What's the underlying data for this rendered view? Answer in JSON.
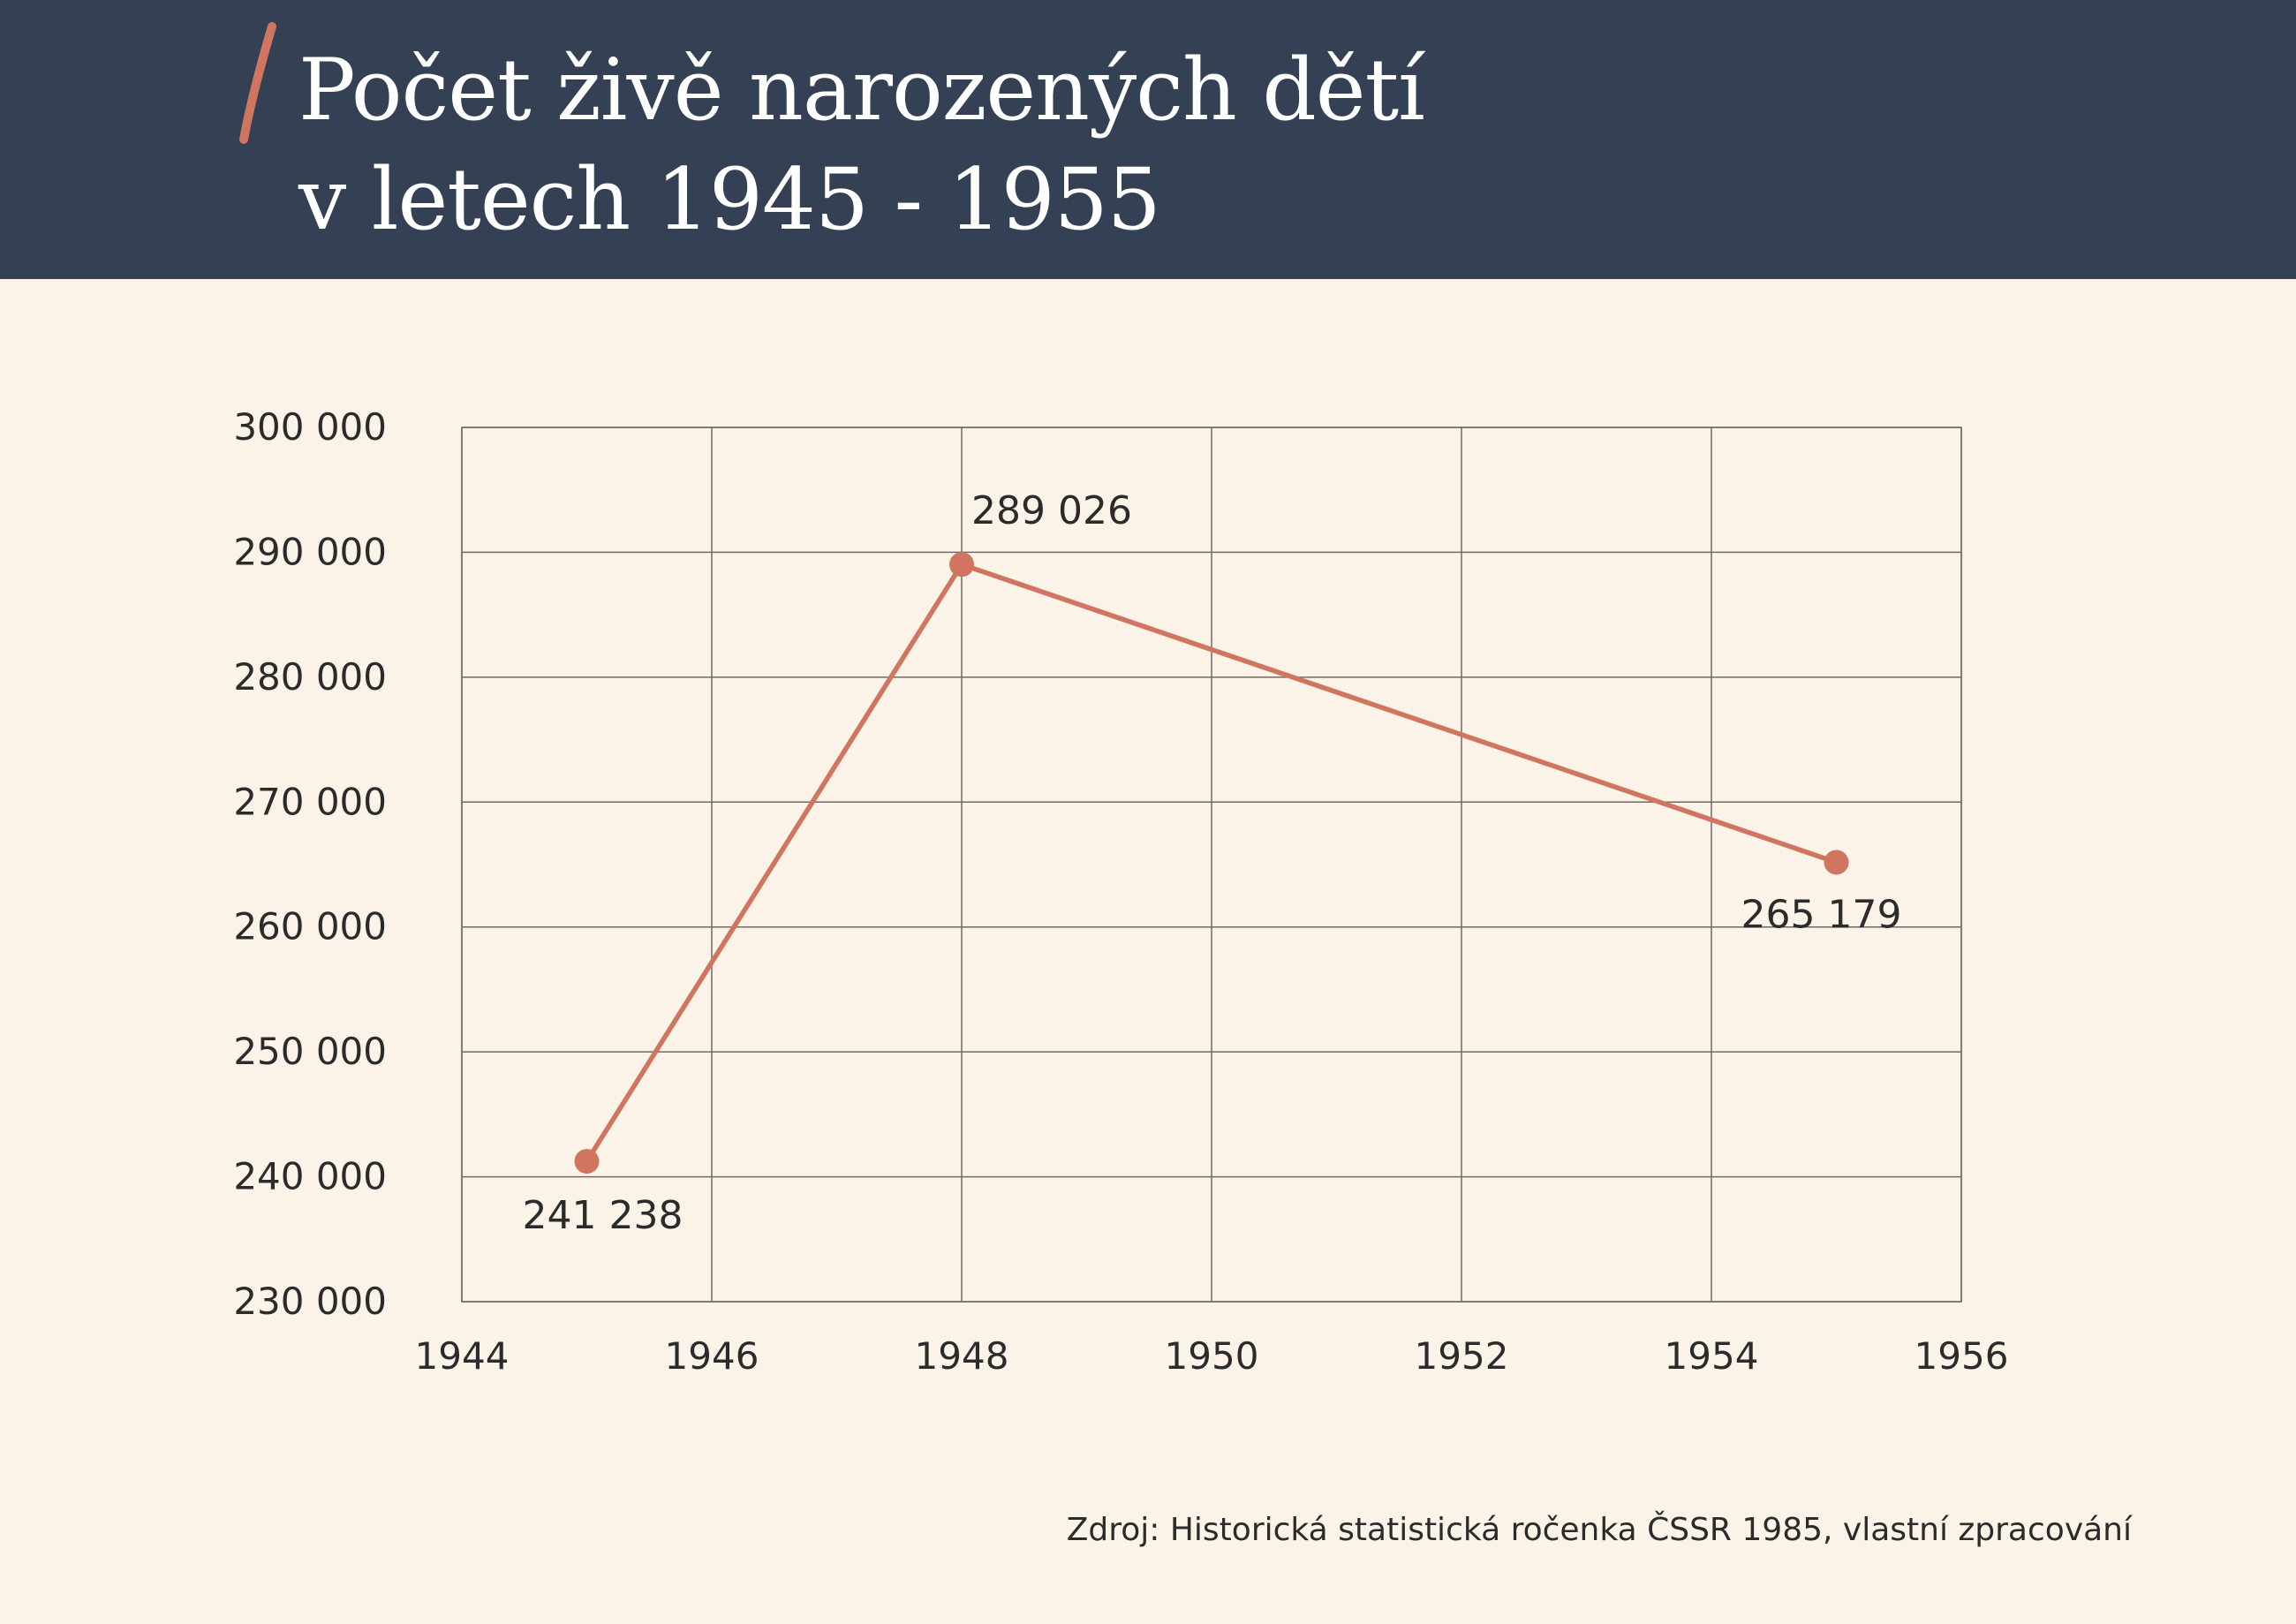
{
  "header": {
    "title_line1": "Počet živě narozených dětí",
    "title_line2": "v letech 1945 - 1955"
  },
  "colors": {
    "header_bg": "#344053",
    "page_bg": "#fbf2e8",
    "accent": "#cf7560",
    "grid": "#6f6a66",
    "text": "#2b2b2b"
  },
  "chart_data": {
    "type": "line",
    "title": "",
    "xlabel": "",
    "ylabel": "",
    "xlim": [
      1944,
      1956
    ],
    "ylim": [
      230000,
      300000
    ],
    "x_ticks": [
      1944,
      1946,
      1948,
      1950,
      1952,
      1954,
      1956
    ],
    "y_ticks": [
      230000,
      240000,
      250000,
      260000,
      270000,
      280000,
      290000,
      300000
    ],
    "y_tick_labels": [
      "230 000",
      "240 000",
      "250 000",
      "260 000",
      "270 000",
      "280 000",
      "290 000",
      "300 000"
    ],
    "grid": true,
    "series": [
      {
        "x": [
          1945,
          1948,
          1955
        ],
        "y": [
          241238,
          289026,
          265179
        ],
        "labels": [
          "241 238",
          "289 026",
          "265 179"
        ]
      }
    ]
  },
  "footer": {
    "source": "Zdroj: Historická statistická ročenka ČSSR 1985, vlastní zpracování"
  }
}
